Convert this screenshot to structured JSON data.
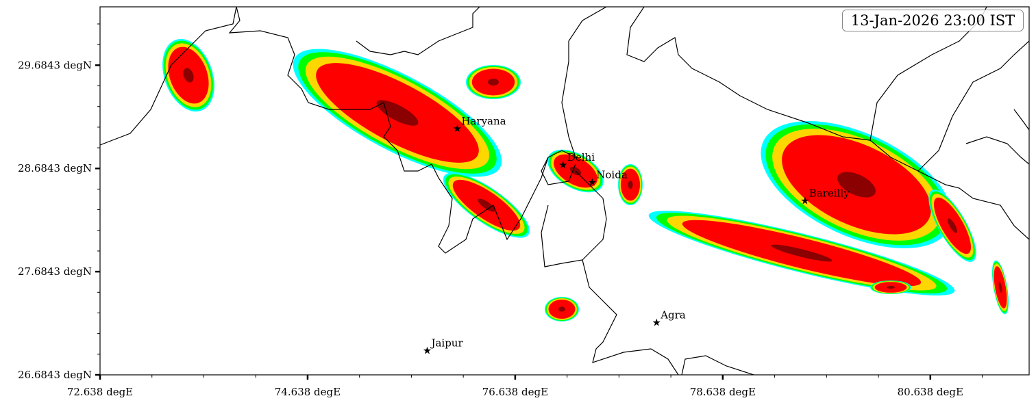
{
  "map": {
    "timestamp": "13-Jan-2026 23:00 IST",
    "extent": {
      "lon": [
        72.638,
        81.59
      ],
      "lat": [
        26.6843,
        30.25
      ]
    },
    "x_ticks": [
      "72.638 degE",
      "74.638 degE",
      "76.638 degE",
      "78.638 degE",
      "80.638 degE"
    ],
    "x_tick_values": [
      72.638,
      74.638,
      76.638,
      78.638,
      80.638
    ],
    "y_ticks": [
      "26.6843 degN",
      "27.6843 degN",
      "28.6843 degN",
      "29.6843 degN"
    ],
    "y_tick_values": [
      26.6843,
      27.6843,
      28.6843,
      29.6843
    ],
    "cities": [
      {
        "name": "Haryana",
        "lon": 76.08,
        "lat": 29.07
      },
      {
        "name": "Delhi",
        "lon": 77.1,
        "lat": 28.72
      },
      {
        "name": "Noida",
        "lon": 77.38,
        "lat": 28.55
      },
      {
        "name": "Bareilly",
        "lon": 79.43,
        "lat": 28.37
      },
      {
        "name": "Agra",
        "lon": 78.0,
        "lat": 27.19
      },
      {
        "name": "Jaipur",
        "lon": 75.79,
        "lat": 26.92
      }
    ],
    "contour_colors": [
      "#00ffff",
      "#00ff00",
      "#ffd700",
      "#ff0000",
      "#8b0000"
    ]
  }
}
